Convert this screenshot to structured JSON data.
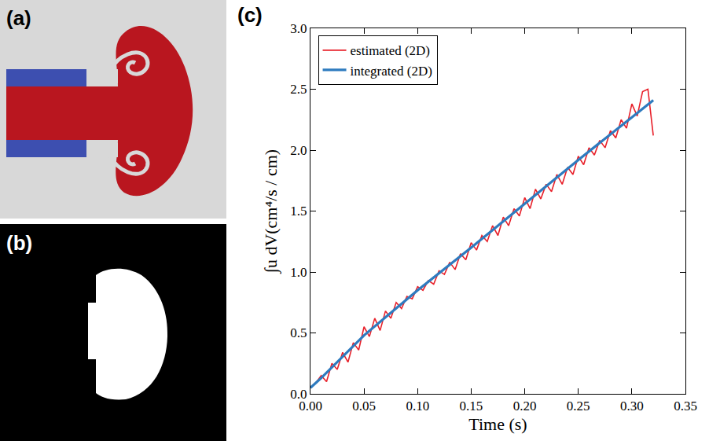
{
  "panel_labels": [
    "(a)",
    "(b)",
    "(c)"
  ],
  "chart_data": {
    "type": "line",
    "xlabel": "Time (s)",
    "ylabel": "∫u dV(cm⁴/s / cm)",
    "xlim": [
      0,
      0.35
    ],
    "xticks": [
      {
        "value": 0,
        "label": "0.00"
      },
      0.05,
      {
        "value": 0.1,
        "label": "0.10"
      },
      0.15,
      {
        "value": 0.2,
        "label": "0.20"
      },
      0.25,
      {
        "value": 0.3,
        "label": "0.30"
      },
      0.35
    ],
    "ylim": [
      0,
      3
    ],
    "yticks": [
      {
        "value": 0,
        "label": "0.0"
      },
      0.5,
      {
        "value": 1,
        "label": "1.0"
      },
      1.5,
      {
        "value": 2,
        "label": "2.0"
      },
      2.5,
      {
        "value": 3,
        "label": "3.0"
      }
    ],
    "grid": false,
    "legend": "upper left",
    "series": [
      {
        "name": "estimated (2D)",
        "color": "#e8202a",
        "line_style": "solid",
        "x": [
          0,
          0.005,
          0.01,
          0.015,
          0.02,
          0.025,
          0.03,
          0.035,
          0.04,
          0.045,
          0.05,
          0.055,
          0.06,
          0.065,
          0.07,
          0.075,
          0.08,
          0.085,
          0.09,
          0.095,
          0.1,
          0.105,
          0.11,
          0.115,
          0.12,
          0.125,
          0.13,
          0.135,
          0.14,
          0.145,
          0.15,
          0.155,
          0.16,
          0.165,
          0.17,
          0.175,
          0.18,
          0.185,
          0.19,
          0.195,
          0.2,
          0.205,
          0.21,
          0.215,
          0.22,
          0.225,
          0.23,
          0.235,
          0.24,
          0.245,
          0.25,
          0.255,
          0.26,
          0.265,
          0.27,
          0.275,
          0.28,
          0.285,
          0.29,
          0.295,
          0.3,
          0.305,
          0.31,
          0.315,
          0.32
        ],
        "values": [
          0.05,
          0.09,
          0.15,
          0.1,
          0.25,
          0.2,
          0.34,
          0.26,
          0.42,
          0.36,
          0.55,
          0.47,
          0.62,
          0.52,
          0.68,
          0.62,
          0.75,
          0.7,
          0.8,
          0.78,
          0.88,
          0.85,
          0.93,
          0.9,
          1.01,
          0.98,
          1.08,
          1.02,
          1.15,
          1.1,
          1.24,
          1.18,
          1.3,
          1.25,
          1.38,
          1.3,
          1.45,
          1.38,
          1.52,
          1.46,
          1.61,
          1.52,
          1.68,
          1.6,
          1.72,
          1.66,
          1.8,
          1.72,
          1.86,
          1.8,
          1.95,
          1.88,
          2.02,
          1.96,
          2.08,
          2.02,
          2.16,
          2.1,
          2.25,
          2.18,
          2.38,
          2.28,
          2.48,
          2.5,
          2.12
        ]
      },
      {
        "name": "integrated (2D)",
        "color": "#2e7bbf",
        "line_style": "solid",
        "x": [
          0,
          0.01,
          0.05,
          0.1,
          0.15,
          0.2,
          0.25,
          0.3,
          0.32
        ],
        "values": [
          0.05,
          0.13,
          0.48,
          0.85,
          1.2,
          1.56,
          1.92,
          2.27,
          2.41
        ]
      }
    ]
  }
}
